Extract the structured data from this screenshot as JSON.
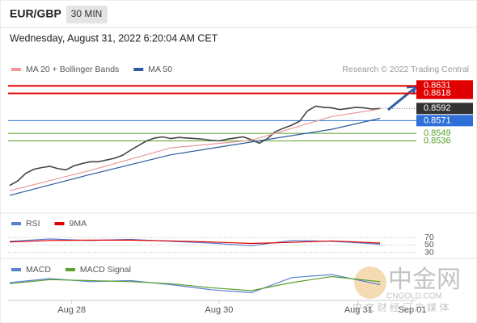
{
  "header": {
    "symbol": "EUR/GBP",
    "interval": "30 MIN",
    "date": "Wednesday, August 31, 2022 6:20:04 AM CET"
  },
  "watermark": {
    "name": "中金网",
    "site": "CNGOLD.COM",
    "slogan": "中 文 财 经 门 户 媒 体"
  },
  "chart_data": [
    {
      "type": "line",
      "credit": "Research © 2022 Trading Central",
      "xlim": [
        -0.2,
        50.5
      ],
      "ylim": [
        0.8414,
        0.8644
      ],
      "xticks": [
        {
          "value": 7.7,
          "label": "Aug 28"
        },
        {
          "value": 26,
          "label": "Aug 30"
        },
        {
          "value": 43.3,
          "label": "Aug 31"
        },
        {
          "value": 50,
          "label": "Sep 01"
        }
      ],
      "series": [
        {
          "color": "#444444",
          "x": [
            0,
            1,
            2,
            3,
            4,
            5,
            6,
            7,
            8,
            9,
            10,
            11,
            12,
            13,
            14,
            15,
            16,
            17,
            18,
            19,
            20,
            21,
            22,
            23,
            24,
            25,
            26,
            27,
            28,
            29,
            30,
            31,
            32,
            33,
            34,
            35,
            36,
            37,
            38,
            39,
            40,
            41,
            42,
            43,
            44,
            45,
            46
          ],
          "values": [
            0.8459,
            0.8467,
            0.848,
            0.8487,
            0.849,
            0.8492,
            0.8488,
            0.8486,
            0.8493,
            0.8497,
            0.85,
            0.85,
            0.8503,
            0.8506,
            0.8511,
            0.852,
            0.8528,
            0.8536,
            0.8541,
            0.8543,
            0.854,
            0.8542,
            0.8541,
            0.854,
            0.8539,
            0.8537,
            0.8536,
            0.8539,
            0.8541,
            0.8543,
            0.8538,
            0.8532,
            0.854,
            0.8552,
            0.8558,
            0.8563,
            0.857,
            0.8588,
            0.8596,
            0.8594,
            0.8593,
            0.859,
            0.8592,
            0.8594,
            0.8593,
            0.8591,
            0.8592
          ]
        },
        {
          "name": "MA 20 + Bollinger Bands",
          "color": "#e89a9a",
          "x": [
            0,
            10,
            20,
            30,
            40,
            46
          ],
          "values": [
            0.845,
            0.8485,
            0.8524,
            0.8537,
            0.8578,
            0.8591
          ]
        },
        {
          "name": "MA 50",
          "color": "#2c5aa0",
          "x": [
            0,
            10,
            20,
            30,
            40,
            46
          ],
          "values": [
            0.8442,
            0.8478,
            0.8512,
            0.8534,
            0.8556,
            0.8575
          ]
        }
      ],
      "levels": {
        "values": [
          0.8631,
          0.8618,
          0.8571,
          0.8549,
          0.8536
        ],
        "colors": [
          "#e00000",
          "#e00000",
          "#2e6fd8",
          "#5aa02c",
          "#5aa02c"
        ],
        "boxed": [
          true,
          true,
          true,
          false,
          false
        ]
      },
      "last": {
        "value": 0.8592,
        "color": "#333333"
      }
    },
    {
      "type": "line",
      "xlim": [
        -0.2,
        50.5
      ],
      "ylim": [
        18,
        90
      ],
      "yticks": [
        70,
        50,
        30
      ],
      "grid": true,
      "series": [
        {
          "name": "RSI",
          "color": "#5b7fd4",
          "x": [
            0,
            5,
            10,
            15,
            20,
            25,
            30,
            35,
            40,
            46
          ],
          "values": [
            60,
            66,
            62,
            65,
            60,
            55,
            48,
            62,
            60,
            52
          ]
        },
        {
          "name": "9MA",
          "color": "#e00000",
          "x": [
            0,
            5,
            10,
            15,
            20,
            25,
            30,
            35,
            40,
            46
          ],
          "values": [
            58,
            62,
            63,
            63,
            61,
            58,
            54,
            57,
            61,
            55
          ]
        }
      ]
    },
    {
      "type": "line",
      "xlim": [
        -0.2,
        50.5
      ],
      "ylim": [
        -0.0012,
        0.0016
      ],
      "series": [
        {
          "name": "MACD",
          "color": "#5b7fd4",
          "x": [
            0,
            5,
            10,
            15,
            20,
            25,
            30,
            35,
            40,
            46
          ],
          "values": [
            0.0004,
            0.0008,
            0.0005,
            0.0006,
            0.0002,
            -0.0003,
            -0.0006,
            0.0009,
            0.0012,
            0.0002
          ]
        },
        {
          "name": "MACD Signal",
          "color": "#5aa02c",
          "x": [
            0,
            5,
            10,
            15,
            20,
            25,
            30,
            35,
            40,
            46
          ],
          "values": [
            0.0003,
            0.0007,
            0.0006,
            0.0005,
            0.0003,
            -0.0001,
            -0.0004,
            0.0004,
            0.001,
            0.0005
          ]
        }
      ]
    }
  ]
}
